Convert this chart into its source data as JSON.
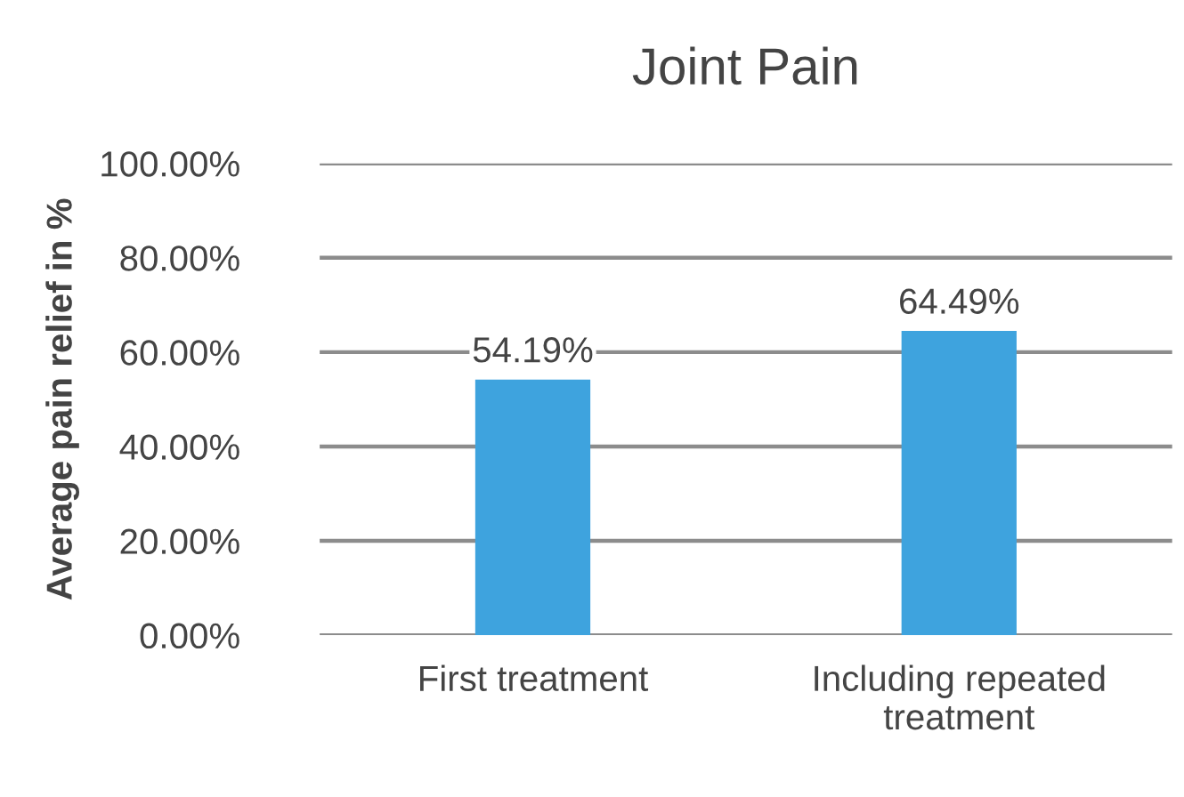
{
  "chart_data": {
    "type": "bar",
    "title": "Joint Pain",
    "ylabel": "Average pain relief in %",
    "categories": [
      "First treatment",
      "Including repeated\ntreatment"
    ],
    "values": [
      54.19,
      64.49
    ],
    "color": "#3ea3de",
    "value_labels": [
      "54.19%",
      "64.49%"
    ],
    "ylim": [
      0,
      100
    ],
    "yticks": [
      {
        "value": 0,
        "label": "0.00%"
      },
      {
        "value": 20,
        "label": "20.00%"
      },
      {
        "value": 40,
        "label": "40.00%"
      },
      {
        "value": 60,
        "label": "60.00%"
      },
      {
        "value": 80,
        "label": "80.00%"
      },
      {
        "value": 100,
        "label": "100.00%"
      }
    ],
    "grid": "y",
    "legend": false
  }
}
